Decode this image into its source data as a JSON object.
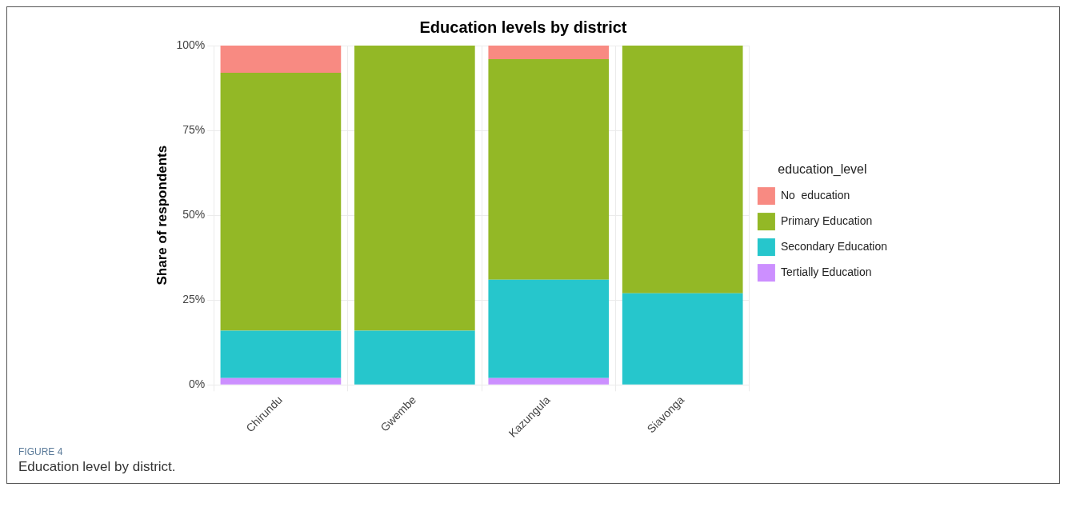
{
  "chart_data": {
    "type": "bar",
    "stacked": true,
    "title": "Education levels by district",
    "ylabel": "Share of respondents",
    "legend_title": "education_level",
    "legend": "right",
    "grid": true,
    "categories": [
      "Chirundu",
      "Gwembe",
      "Kazungula",
      "Siavonga"
    ],
    "series": [
      {
        "name": "Tertially Education",
        "color": "#cc8fff",
        "values": [
          2,
          0,
          2,
          0
        ]
      },
      {
        "name": "Secondary Education",
        "color": "#26c6cc",
        "values": [
          14,
          16,
          29,
          27
        ]
      },
      {
        "name": "Primary Education",
        "color": "#93b826",
        "values": [
          76,
          84,
          65,
          73
        ]
      },
      {
        "name": "No  education",
        "color": "#f88a82",
        "values": [
          8,
          0,
          4,
          0
        ]
      }
    ],
    "ylim": [
      0,
      100
    ],
    "yticks": [
      {
        "value": 0,
        "label": "0%"
      },
      {
        "value": 25,
        "label": "25%"
      },
      {
        "value": 50,
        "label": "50%"
      },
      {
        "value": 75,
        "label": "75%"
      },
      {
        "value": 100,
        "label": "100%"
      }
    ],
    "annotations": [
      "FIGURE 4",
      "Education level by district."
    ]
  }
}
